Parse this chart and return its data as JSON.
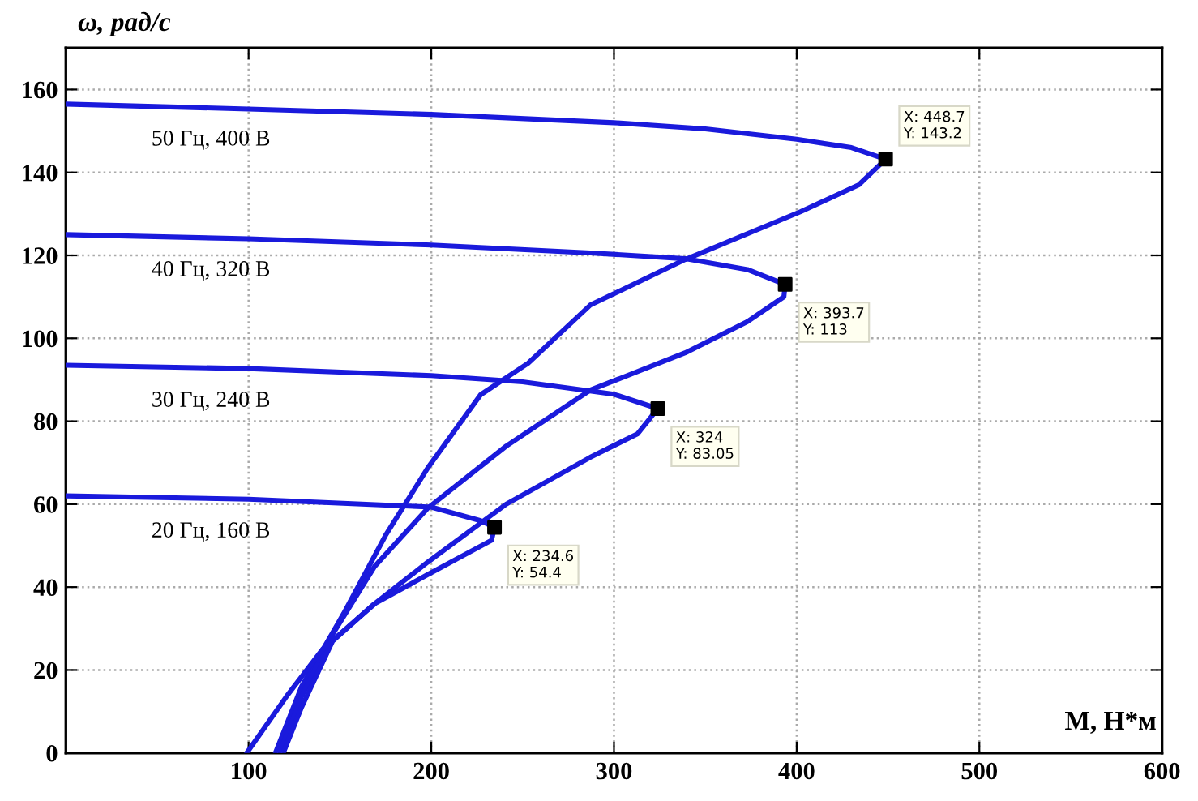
{
  "chart_data": {
    "type": "line",
    "xlabel": "M, Н*м",
    "ylabel": "ω, рад/с",
    "xlim": [
      0,
      600
    ],
    "ylim": [
      0,
      170
    ],
    "xticks": [
      100,
      200,
      300,
      400,
      500,
      600
    ],
    "yticks": [
      0,
      20,
      40,
      60,
      80,
      100,
      120,
      140,
      160
    ],
    "grid": true,
    "legend": false,
    "line_style": "solid",
    "marker": "none",
    "series": [
      {
        "name": "50 Гц, 400 В",
        "color": "#1a1adc",
        "x": [
          0,
          100,
          200,
          300,
          350,
          400,
          430,
          448.7,
          434,
          402,
          339,
          287,
          253,
          227,
          198,
          175,
          152,
          129,
          114.7
        ],
        "values": [
          156.5,
          155.3,
          154,
          152,
          150.5,
          148,
          146,
          143.2,
          137,
          130.5,
          119,
          108,
          94,
          86.4,
          68.7,
          52.5,
          33.6,
          16,
          0
        ]
      },
      {
        "name": "40 Гц, 320 В",
        "color": "#1a1adc",
        "x": [
          0,
          100,
          200,
          287,
          339,
          373,
          393.7,
          393,
          373,
          339,
          287,
          241,
          198,
          169,
          146,
          129,
          117
        ],
        "values": [
          125,
          124,
          122.5,
          120.6,
          119.2,
          116.6,
          113,
          110,
          104,
          96.5,
          87.5,
          74,
          59,
          45,
          28.6,
          13.6,
          0
        ]
      },
      {
        "name": "30 Гц, 240 В",
        "color": "#1a1adc",
        "x": [
          0,
          100,
          200,
          250,
          300,
          324,
          313,
          287,
          241,
          198,
          169,
          146,
          129,
          119
        ],
        "values": [
          93.5,
          92.7,
          91,
          89.5,
          86.5,
          83.05,
          77,
          71.3,
          60,
          46,
          36,
          27,
          11,
          0
        ]
      },
      {
        "name": "20 Гц, 160 В",
        "color": "#1a1adc",
        "x": [
          0,
          100,
          200,
          227,
          234.6,
          233,
          198,
          169,
          140.5,
          120.7,
          99
        ],
        "values": [
          62,
          61.2,
          59.3,
          56,
          54.4,
          51.3,
          43,
          36,
          25,
          13.6,
          0
        ]
      },
      {
        "type": "scatter",
        "marker": "square",
        "color": "#000000",
        "x": [
          448.7,
          393.7,
          324,
          234.6
        ],
        "values": [
          143.2,
          113,
          83.05,
          54.4
        ]
      }
    ],
    "annotations": [
      {
        "text": "X: 448.7\nY: 143.2",
        "x": 448.7,
        "y": 143.2
      },
      {
        "text": "X: 393.7\nY: 113",
        "x": 393.7,
        "y": 113
      },
      {
        "text": "X: 324\nY: 83.05",
        "x": 324,
        "y": 83.05
      },
      {
        "text": "X: 234.6\nY: 54.4",
        "x": 234.6,
        "y": 54.4
      }
    ]
  }
}
